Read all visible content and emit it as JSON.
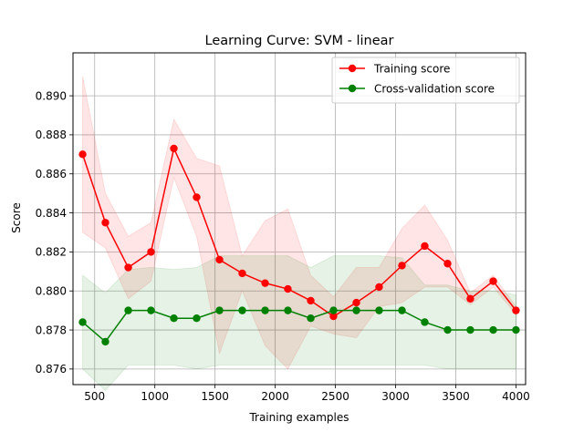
{
  "chart_data": {
    "type": "line",
    "title": "Learning Curve: SVM - linear",
    "xlabel": "Training examples",
    "ylabel": "Score",
    "xlim": [
      320,
      4080
    ],
    "ylim": [
      0.8752,
      0.8922
    ],
    "x_ticks": [
      500,
      1000,
      1500,
      2000,
      2500,
      3000,
      3500,
      4000
    ],
    "x_tick_labels": [
      "500",
      "1000",
      "1500",
      "2000",
      "2500",
      "3000",
      "3500",
      "4000"
    ],
    "y_ticks": [
      0.876,
      0.878,
      0.88,
      0.882,
      0.884,
      0.886,
      0.888,
      0.89
    ],
    "y_tick_labels": [
      "0.876",
      "0.878",
      "0.880",
      "0.882",
      "0.884",
      "0.886",
      "0.888",
      "0.890"
    ],
    "grid": true,
    "legend_position": "top-right",
    "x": [
      400,
      589,
      779,
      968,
      1158,
      1347,
      1537,
      1726,
      1916,
      2105,
      2295,
      2484,
      2674,
      2863,
      3053,
      3242,
      3432,
      3621,
      3811,
      4000
    ],
    "series": [
      {
        "name": "Training score",
        "color": "#ff0000",
        "band_color": "#ff0000",
        "values": [
          0.887,
          0.8835,
          0.8812,
          0.882,
          0.8873,
          0.8848,
          0.8816,
          0.8809,
          0.8804,
          0.8801,
          0.8795,
          0.8787,
          0.8794,
          0.8802,
          0.8813,
          0.8823,
          0.8814,
          0.8796,
          0.8805,
          0.879
        ],
        "band_upper": [
          0.891,
          0.885,
          0.8828,
          0.8835,
          0.8888,
          0.8868,
          0.8864,
          0.8818,
          0.8836,
          0.8842,
          0.8808,
          0.8797,
          0.8812,
          0.8812,
          0.8832,
          0.8844,
          0.8826,
          0.8799,
          0.8808,
          0.8792
        ],
        "band_lower": [
          0.883,
          0.8822,
          0.8796,
          0.8805,
          0.8858,
          0.8828,
          0.8768,
          0.88,
          0.8772,
          0.876,
          0.8782,
          0.8778,
          0.8776,
          0.8792,
          0.8794,
          0.8802,
          0.8802,
          0.8793,
          0.8802,
          0.8788
        ]
      },
      {
        "name": "Cross-validation score",
        "color": "#008000",
        "band_color": "#008000",
        "values": [
          0.8784,
          0.8774,
          0.879,
          0.879,
          0.8786,
          0.8786,
          0.879,
          0.879,
          0.879,
          0.879,
          0.8786,
          0.879,
          0.879,
          0.879,
          0.879,
          0.8784,
          0.878,
          0.878,
          0.878,
          0.878
        ],
        "band_upper": [
          0.8808,
          0.8799,
          0.8811,
          0.8812,
          0.8811,
          0.8812,
          0.8818,
          0.8818,
          0.8818,
          0.8818,
          0.8812,
          0.8818,
          0.8818,
          0.8818,
          0.8817,
          0.8803,
          0.8803,
          0.88,
          0.88,
          0.8798
        ],
        "band_lower": [
          0.876,
          0.8749,
          0.8762,
          0.8762,
          0.8762,
          0.876,
          0.8762,
          0.8762,
          0.8762,
          0.8762,
          0.8762,
          0.8762,
          0.8762,
          0.8762,
          0.8762,
          0.8762,
          0.876,
          0.876,
          0.876,
          0.876
        ]
      }
    ]
  }
}
